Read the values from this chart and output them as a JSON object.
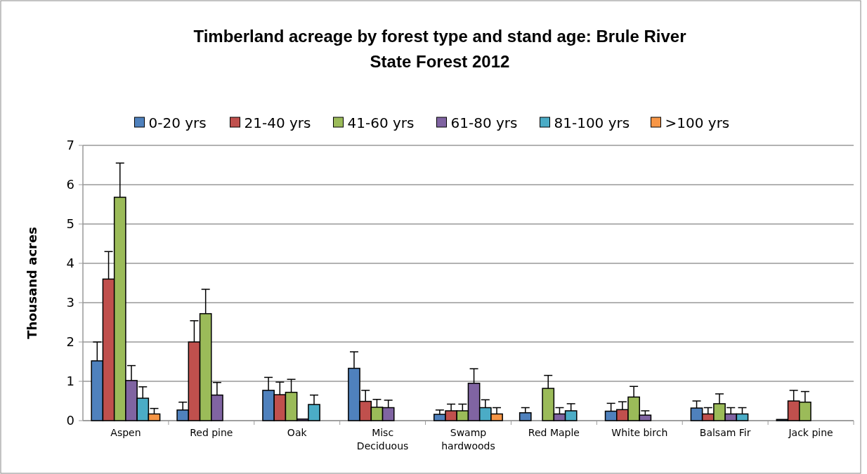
{
  "chart_data": {
    "type": "bar",
    "title": "Timberland acreage by forest type and stand age: Brule River State Forest 2012",
    "ylabel": "Thousand acres",
    "categories": [
      "Aspen",
      "Red pine",
      "Oak",
      "Misc Deciduous",
      "Swamp hardwoods",
      "Red Maple",
      "White birch",
      "Balsam Fir",
      "Jack pine"
    ],
    "series": [
      {
        "name": "0-20 yrs",
        "color": "#4f81bd",
        "values": [
          1.52,
          0.27,
          0.77,
          1.33,
          0.16,
          0.2,
          0.24,
          0.32,
          0.03
        ],
        "errors": [
          [
            1.52,
            2.0
          ],
          [
            0.27,
            0.47
          ],
          [
            0.77,
            1.1
          ],
          [
            1.33,
            1.75
          ],
          [
            0.16,
            0.27
          ],
          [
            0.2,
            0.33
          ],
          [
            0.24,
            0.44
          ],
          [
            0.32,
            0.5
          ],
          null
        ]
      },
      {
        "name": "21-40 yrs",
        "color": "#c0504d",
        "values": [
          3.6,
          2.0,
          0.66,
          0.49,
          0.25,
          0,
          0.28,
          0.17,
          0.5
        ],
        "errors": [
          [
            3.6,
            4.3
          ],
          [
            2.0,
            2.54
          ],
          [
            0.66,
            0.98
          ],
          [
            0.49,
            0.77
          ],
          [
            0.25,
            0.42
          ],
          null,
          [
            0.28,
            0.48
          ],
          [
            0.17,
            0.33
          ],
          [
            0.5,
            0.77
          ]
        ]
      },
      {
        "name": "41-60 yrs",
        "color": "#9bbb59",
        "values": [
          5.68,
          2.72,
          0.72,
          0.34,
          0.25,
          0.82,
          0.6,
          0.43,
          0.47
        ],
        "errors": [
          [
            5.68,
            6.55
          ],
          [
            2.72,
            3.34
          ],
          [
            0.72,
            1.05
          ],
          [
            0.34,
            0.54
          ],
          [
            0.25,
            0.42
          ],
          [
            0.82,
            1.15
          ],
          [
            0.6,
            0.87
          ],
          [
            0.43,
            0.68
          ],
          [
            0.47,
            0.74
          ]
        ]
      },
      {
        "name": "61-80 yrs",
        "color": "#8064a2",
        "values": [
          1.02,
          0.65,
          0.04,
          0.33,
          0.95,
          0.17,
          0.14,
          0.17,
          0
        ],
        "errors": [
          [
            1.02,
            1.4
          ],
          [
            0.65,
            0.97
          ],
          null,
          [
            0.33,
            0.52
          ],
          [
            0.95,
            1.32
          ],
          [
            0.17,
            0.33
          ],
          [
            0.14,
            0.25
          ],
          [
            0.17,
            0.33
          ],
          null
        ]
      },
      {
        "name": "81-100 yrs",
        "color": "#4bacc6",
        "values": [
          0.57,
          0,
          0.41,
          0,
          0.33,
          0.25,
          0,
          0.17,
          0
        ],
        "errors": [
          [
            0.57,
            0.86
          ],
          null,
          [
            0.41,
            0.65
          ],
          null,
          [
            0.33,
            0.53
          ],
          [
            0.25,
            0.43
          ],
          null,
          [
            0.17,
            0.33
          ],
          null
        ]
      },
      {
        "name": ">100 yrs",
        "color": "#f79646",
        "values": [
          0.17,
          0,
          0,
          0,
          0.17,
          0,
          0,
          0,
          0
        ],
        "errors": [
          [
            0.17,
            0.31
          ],
          null,
          null,
          null,
          [
            0.17,
            0.33
          ],
          null,
          null,
          null,
          null
        ]
      }
    ],
    "ylim": [
      0,
      7
    ],
    "yticks": [
      0,
      1,
      2,
      3,
      4,
      5,
      6,
      7
    ],
    "grid": "y",
    "legend": "top"
  }
}
